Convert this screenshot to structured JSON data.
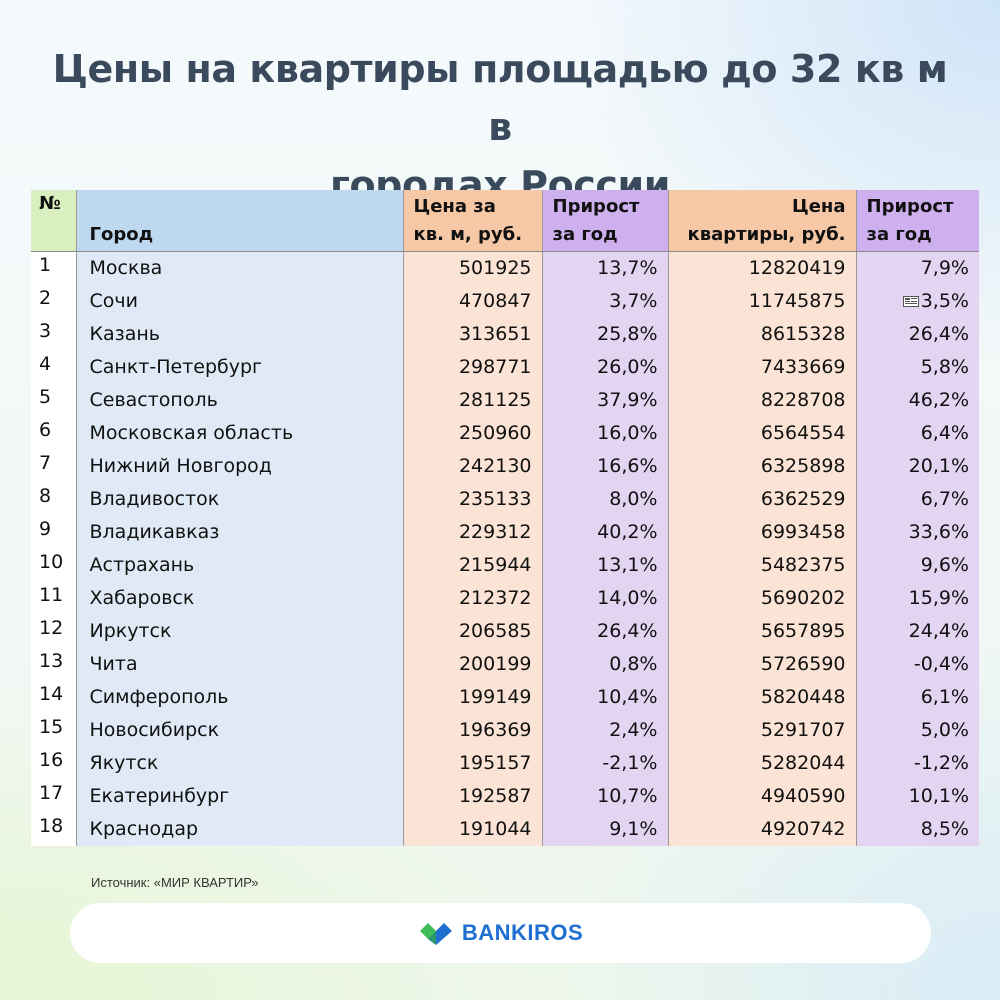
{
  "title": {
    "line1": "Цены на квартиры площадью до 32 кв м в",
    "line2": "городах России"
  },
  "table": {
    "headers": {
      "num": "№",
      "city": "Город",
      "price_per_m_line1": "Цена за",
      "price_per_m_line2": "кв. м, руб.",
      "growth1_line1": "Прирост",
      "growth1_line2": "за год",
      "price_apt_line1": "Цена",
      "price_apt_line2": "квартиры, руб.",
      "growth2_line1": "Прирост",
      "growth2_line2": "за год"
    },
    "rows": [
      {
        "num": "1",
        "city": "Москва",
        "price_per_m": "501925",
        "growth_m": "13,7%",
        "price_apt": "12820419",
        "growth_apt": "7,9%"
      },
      {
        "num": "2",
        "city": "Сочи",
        "price_per_m": "470847",
        "growth_m": "3,7%",
        "price_apt": "11745875",
        "growth_apt": "3,5%"
      },
      {
        "num": "3",
        "city": "Казань",
        "price_per_m": "313651",
        "growth_m": "25,8%",
        "price_apt": "8615328",
        "growth_apt": "26,4%"
      },
      {
        "num": "4",
        "city": "Санкт-Петербург",
        "price_per_m": "298771",
        "growth_m": "26,0%",
        "price_apt": "7433669",
        "growth_apt": "5,8%"
      },
      {
        "num": "5",
        "city": "Севастополь",
        "price_per_m": "281125",
        "growth_m": "37,9%",
        "price_apt": "8228708",
        "growth_apt": "46,2%"
      },
      {
        "num": "6",
        "city": "Московская область",
        "price_per_m": "250960",
        "growth_m": "16,0%",
        "price_apt": "6564554",
        "growth_apt": "6,4%"
      },
      {
        "num": "7",
        "city": "Нижний Новгород",
        "price_per_m": "242130",
        "growth_m": "16,6%",
        "price_apt": "6325898",
        "growth_apt": "20,1%"
      },
      {
        "num": "8",
        "city": "Владивосток",
        "price_per_m": "235133",
        "growth_m": "8,0%",
        "price_apt": "6362529",
        "growth_apt": "6,7%"
      },
      {
        "num": "9",
        "city": "Владикавказ",
        "price_per_m": "229312",
        "growth_m": "40,2%",
        "price_apt": "6993458",
        "growth_apt": "33,6%"
      },
      {
        "num": "10",
        "city": "Астрахань",
        "price_per_m": "215944",
        "growth_m": "13,1%",
        "price_apt": "5482375",
        "growth_apt": "9,6%"
      },
      {
        "num": "11",
        "city": "Хабаровск",
        "price_per_m": "212372",
        "growth_m": "14,0%",
        "price_apt": "5690202",
        "growth_apt": "15,9%"
      },
      {
        "num": "12",
        "city": "Иркутск",
        "price_per_m": "206585",
        "growth_m": "26,4%",
        "price_apt": "5657895",
        "growth_apt": "24,4%"
      },
      {
        "num": "13",
        "city": "Чита",
        "price_per_m": "200199",
        "growth_m": "0,8%",
        "price_apt": "5726590",
        "growth_apt": "-0,4%"
      },
      {
        "num": "14",
        "city": "Симферополь",
        "price_per_m": "199149",
        "growth_m": "10,4%",
        "price_apt": "5820448",
        "growth_apt": "6,1%"
      },
      {
        "num": "15",
        "city": "Новосибирск",
        "price_per_m": "196369",
        "growth_m": "2,4%",
        "price_apt": "5291707",
        "growth_apt": "5,0%"
      },
      {
        "num": "16",
        "city": "Якутск",
        "price_per_m": "195157",
        "growth_m": "-2,1%",
        "price_apt": "5282044",
        "growth_apt": "-1,2%"
      },
      {
        "num": "17",
        "city": "Екатеринбург",
        "price_per_m": "192587",
        "growth_m": "10,7%",
        "price_apt": "4940590",
        "growth_apt": "10,1%"
      },
      {
        "num": "18",
        "city": "Краснодар",
        "price_per_m": "191044",
        "growth_m": "9,1%",
        "price_apt": "4920742",
        "growth_apt": "8,5%"
      }
    ]
  },
  "source": "Источник: «МИР КВАРТИР»",
  "brand": {
    "name": "BANKIROS",
    "logo_icon": "bankiros-check-logo-icon",
    "colors": {
      "green": "#3fbf5a",
      "blue": "#1f6fd1"
    }
  },
  "colors": {
    "title": "#3a4a5c",
    "num_header": "#d9efbf",
    "city_header": "#bed8ef",
    "city_cell": "#dfeaf6",
    "price_header": "#f6c8a6",
    "price_cell": "#fbe4d5",
    "growth_header": "#cfb0ee",
    "growth_cell": "#e3d4f2"
  }
}
